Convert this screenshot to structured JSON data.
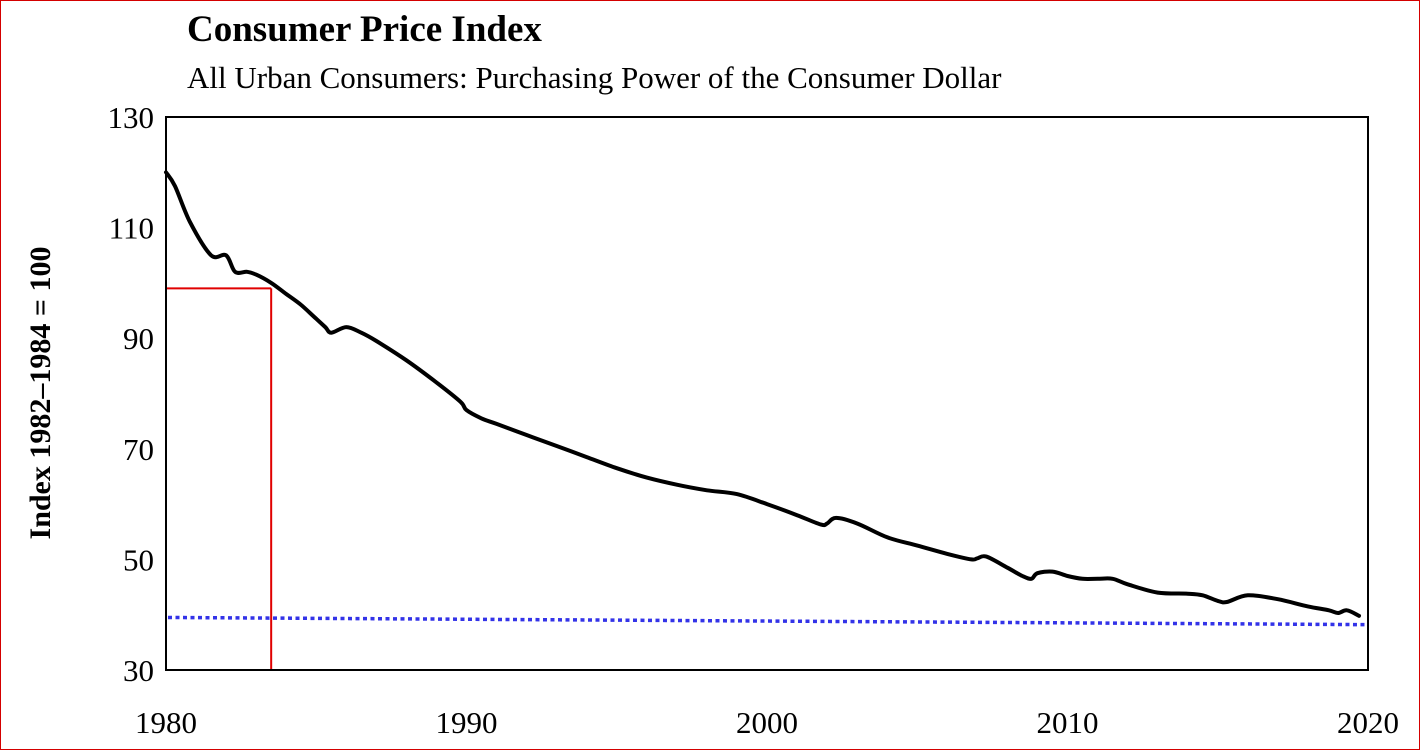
{
  "chart_data": {
    "type": "line",
    "title": "Consumer Price Index",
    "subtitle": "All Urban Consumers: Purchasing Power of the Consumer Dollar",
    "xlabel": "",
    "ylabel": "Index 1982–1984 = 100",
    "xlim": [
      1980,
      2020
    ],
    "ylim": [
      30,
      130
    ],
    "xticks": [
      "1980",
      "1990",
      "2000",
      "2010",
      "2020"
    ],
    "yticks": [
      "30",
      "50",
      "70",
      "90",
      "110",
      "130"
    ],
    "grid": false,
    "series": [
      {
        "name": "Purchasing power of the consumer dollar",
        "color": "#000000",
        "x": [
          1980.0,
          1980.3,
          1980.8,
          1981.5,
          1982.0,
          1982.3,
          1982.7,
          1983.0,
          1983.5,
          1984.0,
          1984.5,
          1985.0,
          1985.3,
          1985.5,
          1986.0,
          1986.5,
          1987.0,
          1988.0,
          1989.0,
          1989.8,
          1990.0,
          1990.5,
          1991.0,
          1992.0,
          1993.0,
          1994.0,
          1995.0,
          1996.0,
          1997.0,
          1998.0,
          1999.0,
          2000.0,
          2001.0,
          2001.8,
          2002.0,
          2002.3,
          2003.0,
          2004.0,
          2005.0,
          2006.0,
          2006.8,
          2007.0,
          2007.3,
          2008.0,
          2008.5,
          2008.8,
          2009.0,
          2009.5,
          2010.0,
          2010.5,
          2011.0,
          2011.5,
          2012.0,
          2013.0,
          2014.0,
          2014.5,
          2015.0,
          2015.3,
          2016.0,
          2017.0,
          2018.0,
          2018.7,
          2019.0,
          2019.3,
          2019.7
        ],
        "y": [
          120.0,
          117.5,
          111.0,
          105.0,
          105.0,
          102.0,
          102.0,
          101.5,
          100.0,
          98.0,
          96.0,
          93.5,
          92.0,
          91.0,
          92.0,
          91.0,
          89.5,
          86.0,
          82.0,
          78.5,
          77.0,
          75.5,
          74.5,
          72.5,
          70.5,
          68.5,
          66.5,
          64.8,
          63.5,
          62.5,
          61.8,
          60.0,
          58.0,
          56.3,
          56.5,
          57.5,
          56.5,
          54.0,
          52.5,
          51.0,
          50.0,
          50.2,
          50.5,
          48.5,
          47.0,
          46.5,
          47.5,
          47.8,
          47.0,
          46.5,
          46.5,
          46.5,
          45.5,
          44.0,
          43.8,
          43.5,
          42.5,
          42.3,
          43.5,
          42.8,
          41.5,
          40.8,
          40.3,
          40.8,
          39.8
        ]
      }
    ],
    "reference_lines": [
      {
        "kind": "horizontal",
        "style": "dotted",
        "color": "#3333e8",
        "value_start": 39.5,
        "value_end": 38.2
      },
      {
        "kind": "marker",
        "color": "#e00000",
        "x": 1983.5,
        "y": 99.0
      }
    ]
  }
}
